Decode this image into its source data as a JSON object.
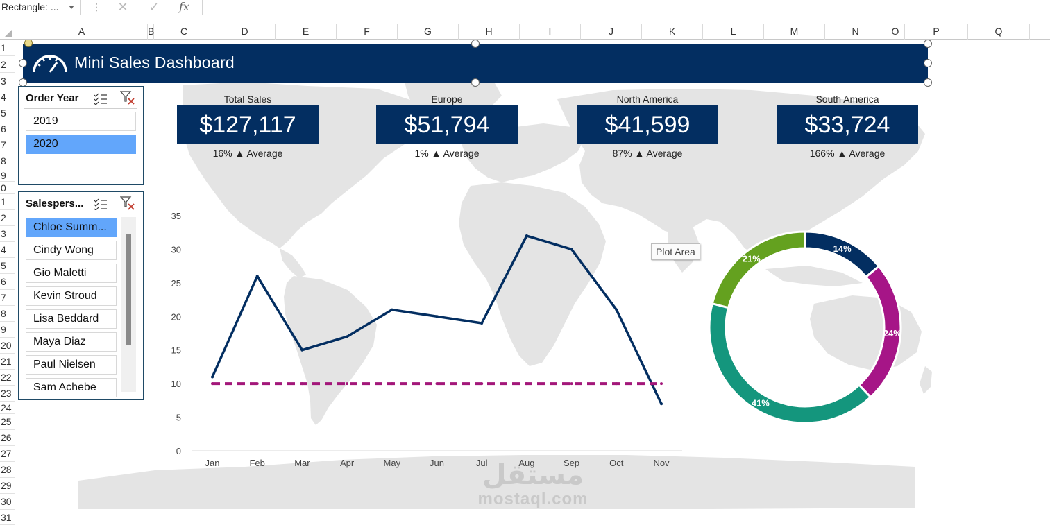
{
  "formula_bar": {
    "name_box": "Rectangle: ...",
    "cancel_icon": "close-icon",
    "enter_icon": "check-icon",
    "fx_label": "fx"
  },
  "columns": [
    "A",
    "B",
    "C",
    "D",
    "E",
    "F",
    "G",
    "H",
    "I",
    "J",
    "K",
    "L",
    "M",
    "N",
    "O",
    "P",
    "Q"
  ],
  "rows": [
    "1",
    "2",
    "3",
    "4",
    "5",
    "6",
    "7",
    "8",
    "9",
    "0",
    "1",
    "2",
    "3",
    "4",
    "5",
    "6",
    "7",
    "8",
    "9",
    "20",
    "21",
    "22",
    "23",
    "24",
    "25",
    "26",
    "27",
    "28",
    "29",
    "30",
    "31"
  ],
  "banner": {
    "title": "Mini Sales Dashboard",
    "icon": "speedometer-icon",
    "color": "#032e61"
  },
  "order_year_slicer": {
    "title": "Order Year",
    "items": [
      {
        "label": "2019",
        "selected": false
      },
      {
        "label": "2020",
        "selected": true
      }
    ]
  },
  "salesperson_slicer": {
    "title": "Salespers...",
    "items": [
      {
        "label": "Chloe Summ...",
        "selected": true
      },
      {
        "label": "Cindy Wong",
        "selected": false
      },
      {
        "label": "Gio Maletti",
        "selected": false
      },
      {
        "label": "Kevin Stroud",
        "selected": false
      },
      {
        "label": "Lisa Beddard",
        "selected": false
      },
      {
        "label": "Maya Diaz",
        "selected": false
      },
      {
        "label": "Paul Nielsen",
        "selected": false
      },
      {
        "label": "Sam Achebe",
        "selected": false
      }
    ]
  },
  "kpis": [
    {
      "label": "Total Sales",
      "value": "$127,117",
      "sub": "16% ▲ Average"
    },
    {
      "label": "Europe",
      "value": "$51,794",
      "sub": "1% ▲ Average"
    },
    {
      "label": "North America",
      "value": "$41,599",
      "sub": "87% ▲ Average"
    },
    {
      "label": "South America",
      "value": "$33,724",
      "sub": "166% ▲ Average"
    }
  ],
  "tooltip": "Plot Area",
  "watermark": {
    "arabic": "مستقل",
    "latin": "mostaql.com"
  },
  "chart_data": [
    {
      "type": "line",
      "title": "",
      "categories": [
        "Jan",
        "Feb",
        "Mar",
        "Apr",
        "May",
        "Jun",
        "Jul",
        "Aug",
        "Sep",
        "Oct",
        "Nov"
      ],
      "series": [
        {
          "values": [
            11,
            26,
            15,
            17,
            21,
            20,
            19,
            32,
            30,
            21,
            7
          ],
          "color": "#032e61",
          "style": "solid"
        },
        {
          "values": [
            10,
            10,
            10,
            10,
            10,
            10,
            10,
            10,
            10,
            10,
            10
          ],
          "color": "#a3177a",
          "style": "dashed"
        }
      ],
      "ylim": [
        0,
        35
      ],
      "yticks": [
        "0",
        "5",
        "10",
        "15",
        "20",
        "25",
        "30",
        "35"
      ],
      "grid": false,
      "legend": "none"
    },
    {
      "type": "pie",
      "variant": "donut",
      "slices": [
        {
          "value": 14,
          "label": "14%",
          "color": "#032e61"
        },
        {
          "value": 24,
          "label": "24%",
          "color": "#a61587"
        },
        {
          "value": 41,
          "label": "41%",
          "color": "#14967d"
        },
        {
          "value": 21,
          "label": "21%",
          "color": "#64a11f"
        }
      ]
    }
  ]
}
